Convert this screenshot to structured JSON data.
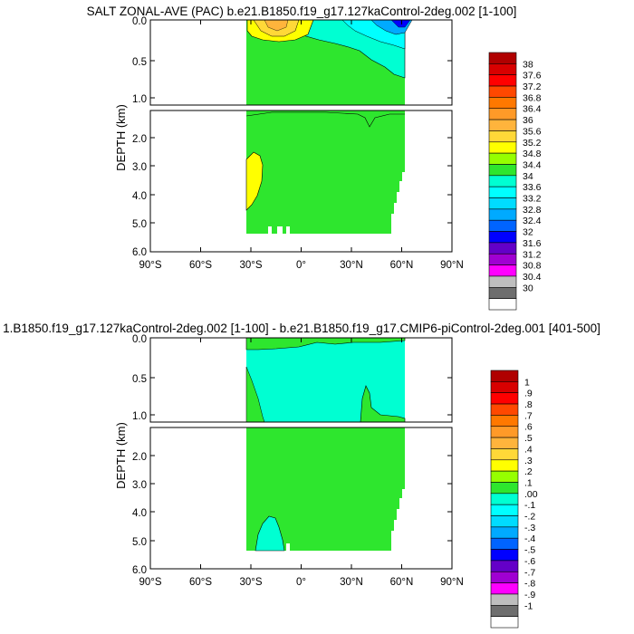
{
  "chart_data": [
    {
      "type": "heatmap",
      "title": "SALT ZONAL-AVE (PAC) b.e21.B1850.f19_g17.127kaControl-2deg.002 [1-100]",
      "ylabel": "DEPTH (km)",
      "xlim": [
        -90,
        90
      ],
      "ylim": [
        6.0,
        0.0
      ],
      "x_ticks": [
        "90°S",
        "60°S",
        "30°S",
        "0°",
        "30°N",
        "60°N",
        "90°N"
      ],
      "y_ticks_upper": [
        "0.0",
        "0.5",
        "1.0"
      ],
      "y_ticks_lower": [
        "2.0",
        "3.0",
        "4.0",
        "5.0",
        "6.0"
      ],
      "grid": false,
      "legend_position": "right",
      "colorbar": {
        "levels": [
          "38",
          "37.6",
          "37.2",
          "36.8",
          "36.4",
          "36",
          "35.6",
          "35.2",
          "34.8",
          "34.4",
          "34",
          "33.6",
          "33.2",
          "32.8",
          "32.4",
          "32",
          "31.6",
          "31.2",
          "30.8",
          "30.4",
          "30"
        ],
        "colors": [
          "#b00000",
          "#d80000",
          "#ff0000",
          "#ff4800",
          "#ff7800",
          "#ff9a28",
          "#ffb43c",
          "#ffd838",
          "#ffff00",
          "#96ff00",
          "#2ee62e",
          "#00ffd2",
          "#00ffff",
          "#00dcff",
          "#00aaff",
          "#0064ff",
          "#0000ff",
          "#6400c8",
          "#a000d2",
          "#ff00ff",
          "#bebebe",
          "#6e6e6e",
          "#ffffff"
        ]
      },
      "background_value": "34.4-34.8",
      "ocean_extent": {
        "lat_south": -34,
        "lat_north": 62,
        "max_depth_km": 5.35
      }
    },
    {
      "type": "heatmap",
      "title": "1.B1850.f19_g17.127kaControl-2deg.002 [1-100] - b.e21.B1850.f19_g17.CMIP6-piControl-2deg.001 [401-500]",
      "ylabel": "DEPTH (km)",
      "xlim": [
        -90,
        90
      ],
      "ylim": [
        6.0,
        0.0
      ],
      "x_ticks": [
        "90°S",
        "60°S",
        "30°S",
        "0°",
        "30°N",
        "60°N",
        "90°N"
      ],
      "y_ticks_upper": [
        "0.0",
        "0.5",
        "1.0"
      ],
      "y_ticks_lower": [
        "2.0",
        "3.0",
        "4.0",
        "5.0",
        "6.0"
      ],
      "grid": false,
      "legend_position": "right",
      "colorbar": {
        "levels": [
          "1",
          ".9",
          ".8",
          ".7",
          ".6",
          ".5",
          ".4",
          ".3",
          ".2",
          ".1",
          ".00",
          "-.1",
          "-.2",
          "-.3",
          "-.4",
          "-.5",
          "-.6",
          "-.7",
          "-.8",
          "-.9",
          "-1"
        ],
        "colors": [
          "#b00000",
          "#d80000",
          "#ff0000",
          "#ff4800",
          "#ff7800",
          "#ff9a28",
          "#ffb43c",
          "#ffd838",
          "#ffff00",
          "#96ff00",
          "#2ee62e",
          "#00ffd2",
          "#00ffff",
          "#00dcff",
          "#00aaff",
          "#0064ff",
          "#0000ff",
          "#6400c8",
          "#a000d2",
          "#ff00ff",
          "#bebebe",
          "#6e6e6e",
          "#ffffff"
        ]
      },
      "background_value": "0.0-0.1",
      "ocean_extent": {
        "lat_south": -34,
        "lat_north": 62,
        "max_depth_km": 5.35
      }
    }
  ]
}
